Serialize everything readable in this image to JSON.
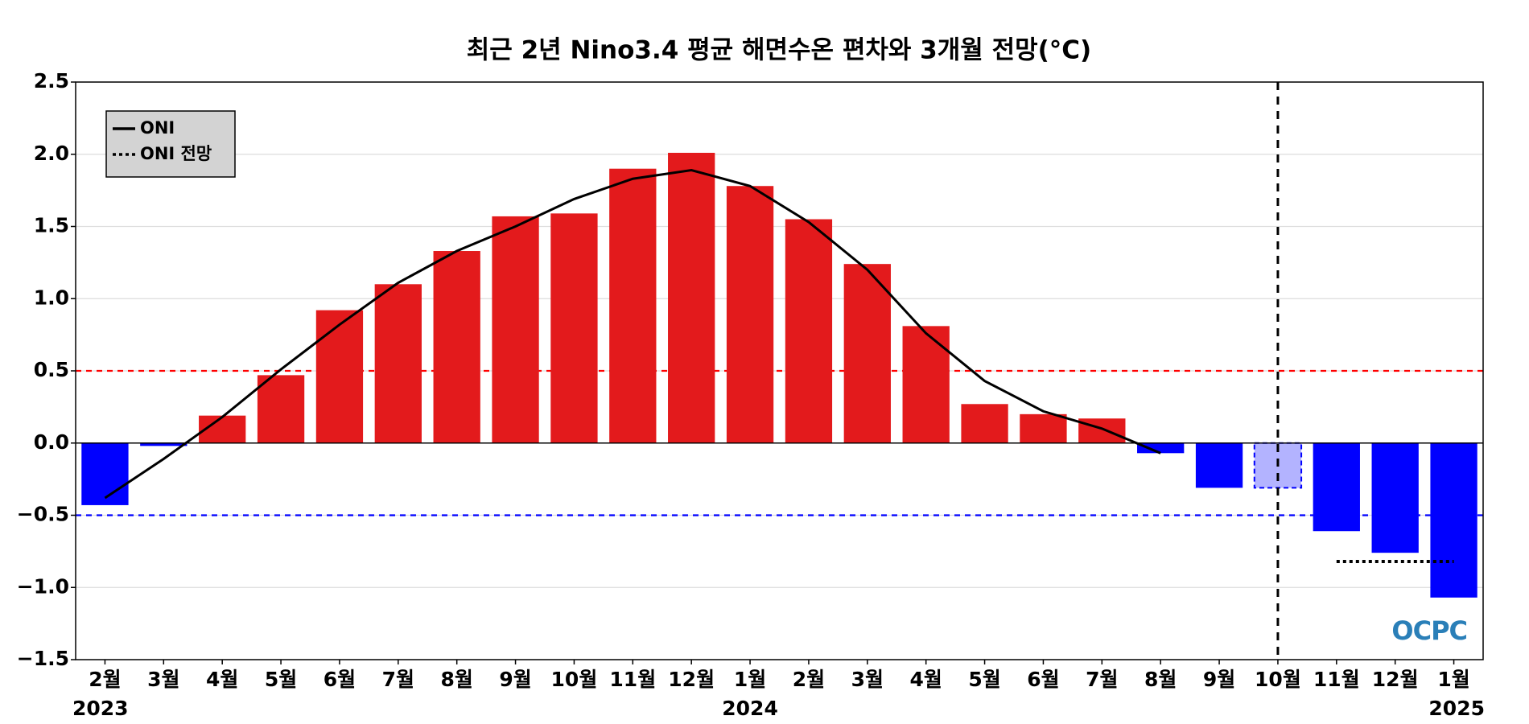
{
  "chart_data": {
    "type": "bar",
    "title": "최근 2년 Nino3.4 평균 해면수온 편차와 3개월 전망(°C)",
    "categories": [
      "2월",
      "3월",
      "4월",
      "5월",
      "6월",
      "7월",
      "8월",
      "9월",
      "10월",
      "11월",
      "12월",
      "1월",
      "2월",
      "3월",
      "4월",
      "5월",
      "6월",
      "7월",
      "8월",
      "9월",
      "10월",
      "11월",
      "12월",
      "1월"
    ],
    "year_labels": [
      "2023",
      null,
      null,
      null,
      null,
      null,
      null,
      null,
      null,
      null,
      null,
      "2024",
      null,
      null,
      null,
      null,
      null,
      null,
      null,
      null,
      null,
      null,
      null,
      "2025"
    ],
    "values": [
      -0.43,
      -0.02,
      0.19,
      0.47,
      0.92,
      1.1,
      1.33,
      1.57,
      1.59,
      1.9,
      2.01,
      1.78,
      1.55,
      1.24,
      0.81,
      0.27,
      0.2,
      0.17,
      -0.07,
      -0.31,
      -0.31,
      -0.61,
      -0.76,
      -1.07
    ],
    "colors": [
      "#0000ff",
      "#0000ff",
      "#e31a1c",
      "#e31a1c",
      "#e31a1c",
      "#e31a1c",
      "#e31a1c",
      "#e31a1c",
      "#e31a1c",
      "#e31a1c",
      "#e31a1c",
      "#e31a1c",
      "#e31a1c",
      "#e31a1c",
      "#e31a1c",
      "#e31a1c",
      "#e31a1c",
      "#e31a1c",
      "#0000ff",
      "#0000ff",
      "#b3b3ff",
      "#0000ff",
      "#0000ff",
      "#0000ff"
    ],
    "bar_styles": [
      "solid",
      "solid",
      "solid",
      "solid",
      "solid",
      "solid",
      "solid",
      "solid",
      "solid",
      "solid",
      "solid",
      "solid",
      "solid",
      "solid",
      "solid",
      "solid",
      "solid",
      "solid",
      "solid",
      "solid",
      "dashed",
      "solid",
      "solid",
      "solid"
    ],
    "series": [
      {
        "name": "ONI",
        "color": "#000000",
        "dash": "solid",
        "values": [
          -0.38,
          -0.11,
          0.18,
          0.51,
          0.82,
          1.11,
          1.33,
          1.5,
          1.69,
          1.83,
          1.89,
          1.78,
          1.53,
          1.2,
          0.76,
          0.43,
          0.22,
          0.1,
          -0.07,
          null,
          null,
          null,
          null,
          null
        ]
      },
      {
        "name": "ONI 전망",
        "color": "#000000",
        "dash": "dotted",
        "values": [
          null,
          null,
          null,
          null,
          null,
          null,
          null,
          null,
          null,
          null,
          null,
          null,
          null,
          null,
          null,
          null,
          null,
          null,
          null,
          null,
          null,
          -0.82,
          -0.82,
          -0.82
        ]
      }
    ],
    "hlines": [
      {
        "value": 0.5,
        "color": "#ff0000"
      },
      {
        "value": -0.5,
        "color": "#0000ff"
      }
    ],
    "ylim": [
      -1.5,
      2.5
    ],
    "yticks": [
      {
        "value": -1.5,
        "label": "−1.5"
      },
      {
        "value": -1.0,
        "label": "−1.0"
      },
      {
        "value": -0.5,
        "label": "−0.5"
      },
      {
        "value": 0,
        "label": "0.0"
      },
      {
        "value": 0.5,
        "label": "0.5"
      },
      {
        "value": 1.0,
        "label": "1.0"
      },
      {
        "value": 1.5,
        "label": "1.5"
      },
      {
        "value": 2.0,
        "label": "2.0"
      },
      {
        "value": 2.5,
        "label": "2.5"
      }
    ],
    "grid": true,
    "legend": "upper left",
    "logo": "OCPC"
  }
}
